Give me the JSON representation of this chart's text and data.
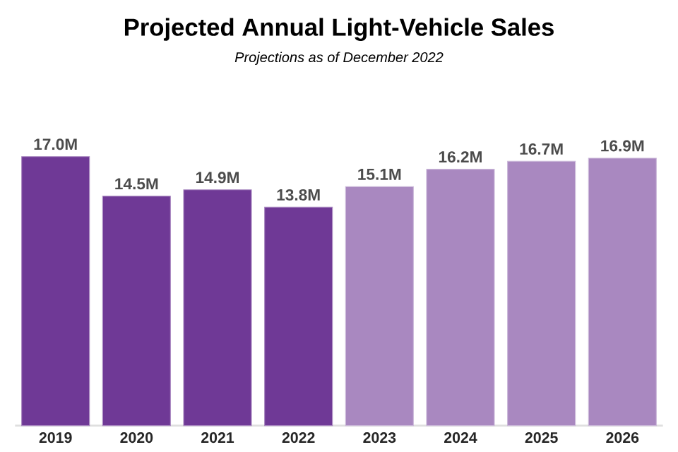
{
  "chart_data": {
    "type": "bar",
    "title": "Projected Annual Light-Vehicle Sales",
    "subtitle": "Projections as of December 2022",
    "categories": [
      "2019",
      "2020",
      "2021",
      "2022",
      "2023",
      "2024",
      "2025",
      "2026"
    ],
    "series": [
      {
        "color": "#6f3996",
        "values": [
          17.0,
          14.5,
          14.9,
          13.8,
          null,
          null,
          null,
          null
        ],
        "value_labels": [
          "17.0M",
          "14.5M",
          "14.9M",
          "13.8M",
          null,
          null,
          null,
          null
        ]
      },
      {
        "color": "#a988c0",
        "values": [
          null,
          null,
          null,
          null,
          15.1,
          16.2,
          16.7,
          16.9
        ],
        "value_labels": [
          null,
          null,
          null,
          null,
          "15.1M",
          "16.2M",
          "16.7M",
          "16.9M"
        ]
      }
    ]
  }
}
